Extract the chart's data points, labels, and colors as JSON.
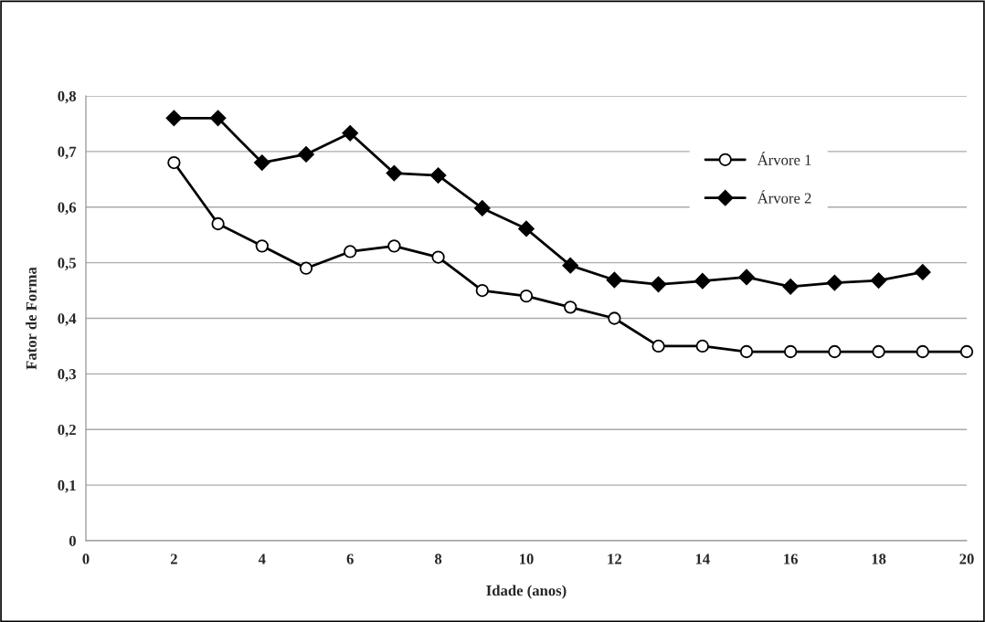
{
  "chart_data": {
    "type": "line",
    "xlabel": "Idade (anos)",
    "ylabel": "Fator de Forma",
    "x": [
      2,
      3,
      4,
      5,
      6,
      7,
      8,
      9,
      10,
      11,
      12,
      13,
      14,
      15,
      16,
      17,
      18,
      19,
      20
    ],
    "series": [
      {
        "name": "Árvore 1",
        "color": "#000000",
        "marker": "circle",
        "values": [
          0.68,
          0.57,
          0.53,
          0.49,
          0.52,
          0.53,
          0.51,
          0.45,
          0.44,
          0.42,
          0.4,
          0.35,
          0.35,
          0.34,
          0.34,
          0.34,
          0.34,
          0.34,
          0.34
        ]
      },
      {
        "name": "Árvore 2",
        "color": "#000000",
        "marker": "diamond",
        "values": [
          0.76,
          0.76,
          0.68,
          0.695,
          0.733,
          0.661,
          0.657,
          0.598,
          0.561,
          0.495,
          0.469,
          0.461,
          0.467,
          0.474,
          0.457,
          0.464,
          0.468,
          0.483,
          null
        ]
      }
    ],
    "xlim": [
      0,
      20
    ],
    "xticks": [
      0,
      2,
      4,
      6,
      8,
      10,
      12,
      14,
      16,
      18,
      20
    ],
    "ylim": [
      0,
      0.8
    ],
    "yticks": [
      0,
      {
        "value": 0.1,
        "label": "0,1"
      },
      {
        "value": 0.2,
        "label": "0,2"
      },
      {
        "value": 0.3,
        "label": "0,3"
      },
      {
        "value": 0.4,
        "label": "0,4"
      },
      {
        "value": 0.5,
        "label": "0,5"
      },
      {
        "value": 0.6,
        "label": "0,6"
      },
      {
        "value": 0.7,
        "label": "0,7"
      },
      {
        "value": 0.8,
        "label": "0,8"
      }
    ],
    "grid": "y",
    "legend": "top right",
    "line_style": "solid"
  }
}
